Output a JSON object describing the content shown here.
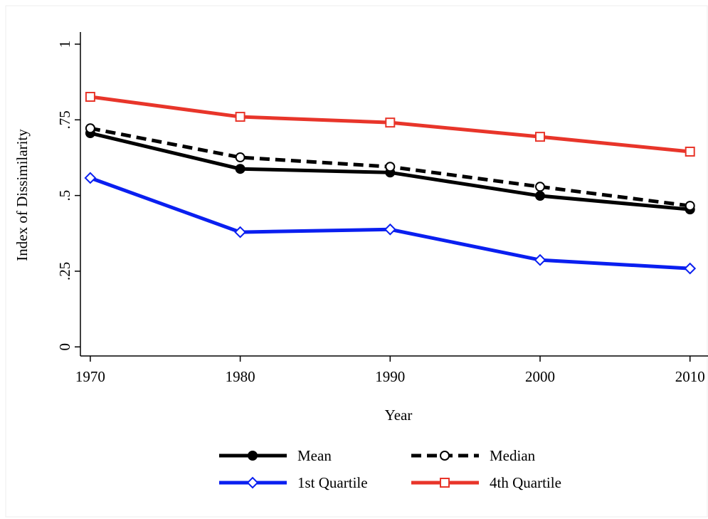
{
  "chart_data": {
    "type": "line",
    "x_label": "Year",
    "y_label": "Index of Dissimilarity",
    "x": [
      1970,
      1980,
      1990,
      2000,
      2010
    ],
    "series": [
      {
        "name": "Mean",
        "color": "#000000",
        "marker": "filled-circle",
        "dash": false,
        "values": [
          0.706,
          0.588,
          0.576,
          0.499,
          0.454
        ]
      },
      {
        "name": "Median",
        "color": "#000000",
        "marker": "circle",
        "dash": true,
        "values": [
          0.722,
          0.626,
          0.595,
          0.529,
          0.466
        ]
      },
      {
        "name": "1st Quartile",
        "color": "#0a1ff0",
        "marker": "diamond",
        "dash": false,
        "values": [
          0.558,
          0.379,
          0.388,
          0.287,
          0.259
        ]
      },
      {
        "name": "4th Quartile",
        "color": "#e8352a",
        "marker": "square",
        "dash": false,
        "values": [
          0.826,
          0.76,
          0.741,
          0.694,
          0.645
        ]
      }
    ],
    "xlim": [
      1969.34,
      2011.2
    ],
    "ylim": [
      -0.03,
      1.04
    ],
    "xticks": [
      1970,
      1980,
      1990,
      2000,
      2010
    ],
    "yticks": [
      0,
      {
        "value": 0.25,
        "label": ".25"
      },
      {
        "value": 0.5,
        "label": ".5"
      },
      {
        "value": 0.75,
        "label": ".75"
      },
      1
    ],
    "grid": false,
    "legend": "bottom"
  }
}
